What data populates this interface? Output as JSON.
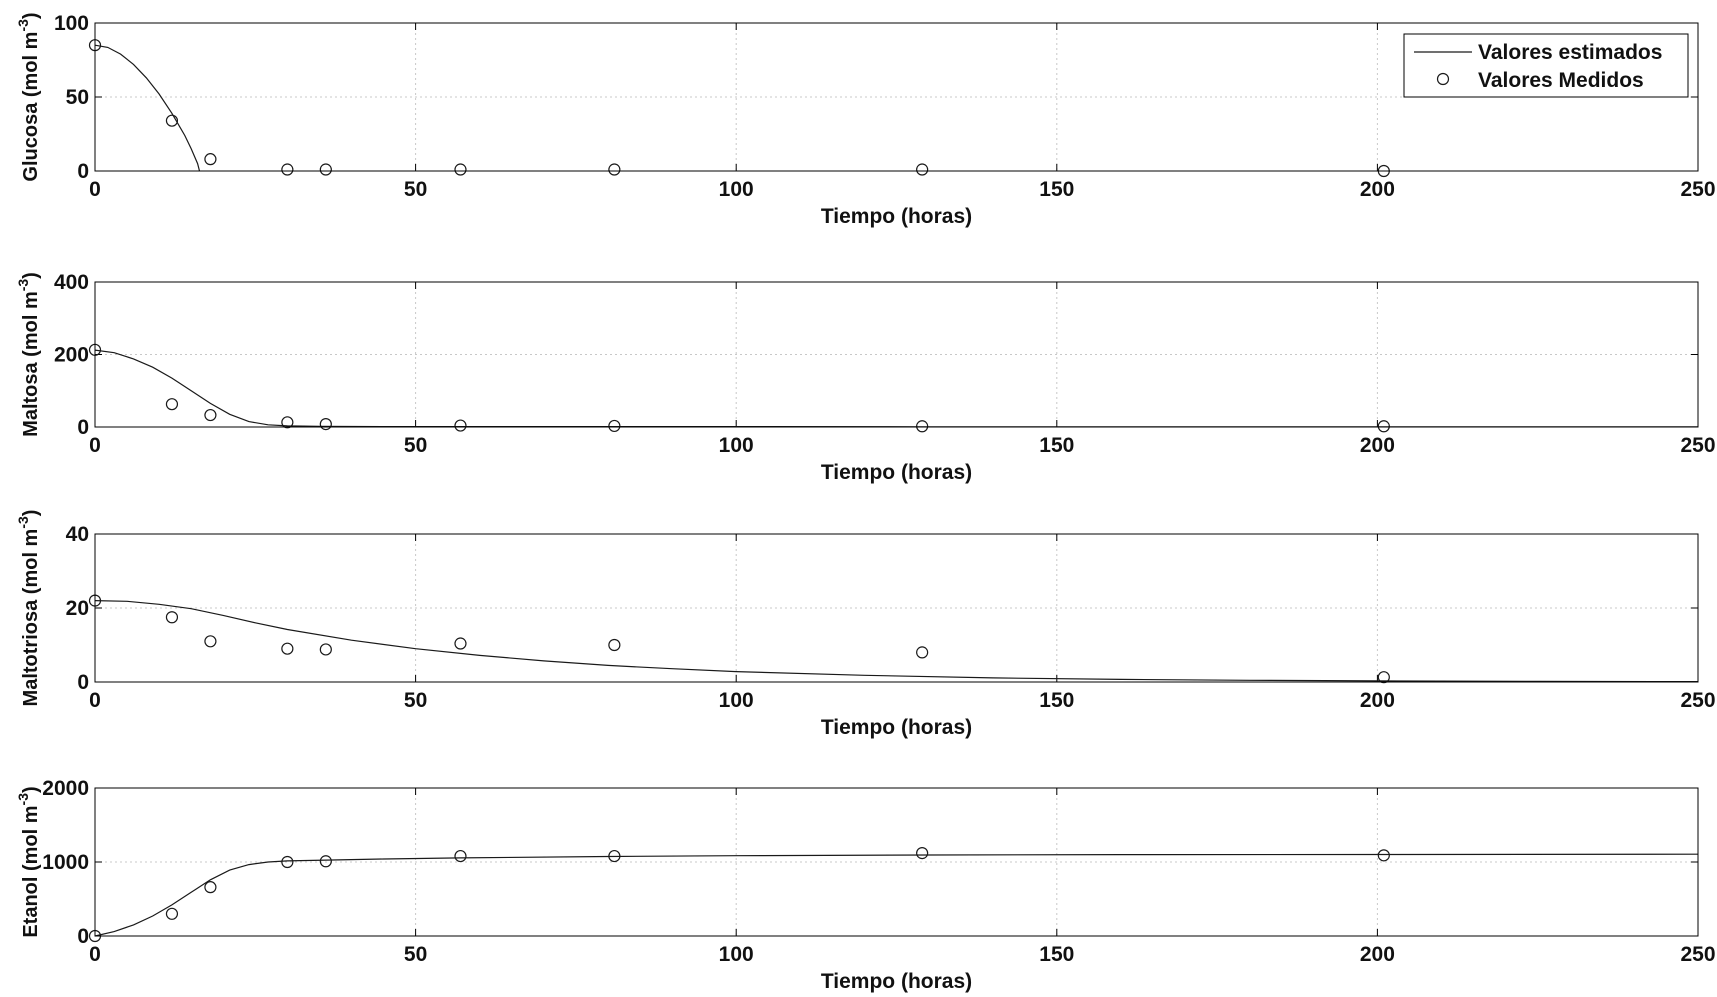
{
  "chart_data": [
    {
      "type": "line",
      "ylabel": "Glucosa (mol m",
      "ylabel_sup": "-3",
      "ylabel_end": ")",
      "xlabel": "Tiempo (horas)",
      "xlim": [
        0,
        250
      ],
      "ylim": [
        0,
        100
      ],
      "xticks": [
        0,
        50,
        100,
        150,
        200,
        250
      ],
      "yticks": [
        0,
        50,
        100
      ],
      "grid": true,
      "legend": {
        "position": "top-right",
        "entries": [
          "Valores estimados",
          "Valores Medidos"
        ]
      },
      "series": [
        {
          "name": "Valores estimados",
          "style": "line",
          "x": [
            0,
            2,
            4,
            6,
            8,
            10,
            12,
            14,
            15,
            16,
            16.3
          ],
          "y": [
            85,
            83.5,
            79,
            72,
            63,
            52,
            39,
            24,
            15,
            5,
            0
          ]
        },
        {
          "name": "Valores Medidos",
          "style": "markers",
          "x": [
            0,
            12,
            18,
            30,
            36,
            57,
            81,
            129,
            201
          ],
          "y": [
            85,
            34,
            8,
            1,
            1,
            1,
            1,
            1,
            0
          ]
        }
      ]
    },
    {
      "type": "line",
      "ylabel": "Maltosa (mol m",
      "ylabel_sup": "-3",
      "ylabel_end": ")",
      "xlabel": "Tiempo (horas)",
      "xlim": [
        0,
        250
      ],
      "ylim": [
        0,
        400
      ],
      "xticks": [
        0,
        50,
        100,
        150,
        200,
        250
      ],
      "yticks": [
        0,
        200,
        400
      ],
      "grid": true,
      "series": [
        {
          "name": "Valores estimados",
          "style": "line",
          "x": [
            0,
            3,
            6,
            9,
            12,
            15,
            18,
            21,
            24,
            27,
            30,
            35,
            40,
            50,
            60,
            80,
            100,
            130,
            160,
            200,
            250
          ],
          "y": [
            212,
            205,
            188,
            165,
            135,
            100,
            65,
            35,
            15,
            6,
            3,
            2,
            1.5,
            1,
            1,
            1,
            1,
            0.5,
            0.5,
            0.5,
            0.5
          ]
        },
        {
          "name": "Valores Medidos",
          "style": "markers",
          "x": [
            0,
            12,
            18,
            30,
            36,
            57,
            81,
            129,
            201
          ],
          "y": [
            213,
            63,
            33,
            13,
            8,
            4,
            3,
            2,
            2
          ]
        }
      ]
    },
    {
      "type": "line",
      "ylabel": "Maltotriosa (mol m",
      "ylabel_sup": "-3",
      "ylabel_end": ")",
      "xlabel": "Tiempo (horas)",
      "xlim": [
        0,
        250
      ],
      "ylim": [
        0,
        40
      ],
      "xticks": [
        0,
        50,
        100,
        150,
        200,
        250
      ],
      "yticks": [
        0,
        20,
        40
      ],
      "grid": true,
      "series": [
        {
          "name": "Valores estimados",
          "style": "line",
          "x": [
            0,
            5,
            10,
            15,
            20,
            25,
            30,
            40,
            50,
            60,
            70,
            80,
            90,
            100,
            120,
            140,
            160,
            180,
            200,
            225,
            250
          ],
          "y": [
            22,
            21.8,
            21,
            19.8,
            18,
            16,
            14.2,
            11.3,
            9,
            7.2,
            5.7,
            4.5,
            3.6,
            2.8,
            1.8,
            1.1,
            0.7,
            0.45,
            0.3,
            0.15,
            0.1
          ]
        },
        {
          "name": "Valores Medidos",
          "style": "markers",
          "x": [
            0,
            12,
            18,
            30,
            36,
            57,
            81,
            129,
            201
          ],
          "y": [
            22,
            17.5,
            11,
            9,
            8.8,
            10.4,
            10,
            8,
            1.3
          ]
        }
      ]
    },
    {
      "type": "line",
      "ylabel": "Etanol (mol m",
      "ylabel_sup": "-3",
      "ylabel_end": ")",
      "xlabel": "Tiempo (horas)",
      "xlim": [
        0,
        250
      ],
      "ylim": [
        0,
        2000
      ],
      "xticks": [
        0,
        50,
        100,
        150,
        200,
        250
      ],
      "yticks": [
        0,
        1000,
        2000
      ],
      "grid": true,
      "series": [
        {
          "name": "Valores estimados",
          "style": "line",
          "x": [
            0,
            3,
            6,
            9,
            12,
            15,
            18,
            21,
            24,
            27,
            30,
            36,
            45,
            57,
            80,
            100,
            130,
            160,
            200,
            250
          ],
          "y": [
            0,
            60,
            150,
            270,
            420,
            590,
            760,
            890,
            965,
            1000,
            1015,
            1025,
            1040,
            1055,
            1075,
            1085,
            1095,
            1100,
            1102,
            1105
          ]
        },
        {
          "name": "Valores Medidos",
          "style": "markers",
          "x": [
            0,
            12,
            18,
            30,
            36,
            57,
            81,
            129,
            201
          ],
          "y": [
            0,
            300,
            660,
            1000,
            1010,
            1080,
            1080,
            1120,
            1090
          ]
        }
      ]
    }
  ]
}
